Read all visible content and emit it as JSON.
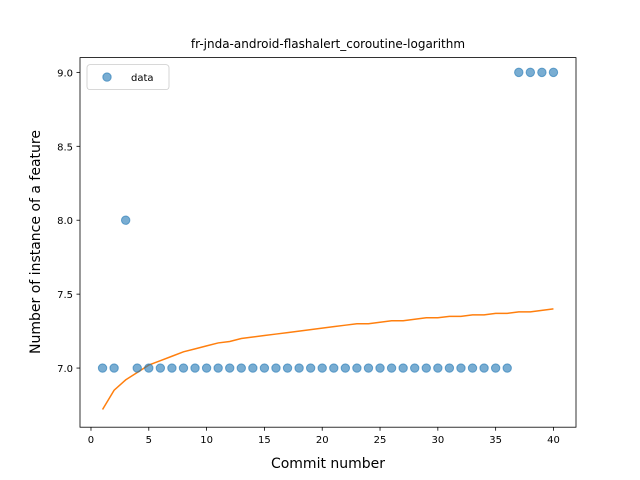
{
  "chart_data": {
    "type": "scatter",
    "title": "fr-jnda-android-flashalert_coroutine-logarithm",
    "xlabel": "Commit number",
    "ylabel": "Number of instance of a feature",
    "xlim": [
      -0.95,
      41.95
    ],
    "ylim": [
      6.6,
      9.1
    ],
    "xticks": [
      0,
      5,
      10,
      15,
      20,
      25,
      30,
      35,
      40
    ],
    "yticks": [
      7.0,
      7.5,
      8.0,
      8.5,
      9.0
    ],
    "xtick_labels": [
      "0",
      "5",
      "10",
      "15",
      "20",
      "25",
      "30",
      "35",
      "40"
    ],
    "ytick_labels": [
      "7.0",
      "7.5",
      "8.0",
      "8.5",
      "9.0"
    ],
    "legend": {
      "placement": "top-left",
      "entries": [
        "data"
      ]
    },
    "grid": false,
    "colors": {
      "data": "#1f77b4",
      "fit": "#ff7f0e"
    },
    "series": [
      {
        "name": "data",
        "kind": "scatter",
        "x": [
          1,
          2,
          3,
          4,
          5,
          6,
          7,
          8,
          9,
          10,
          11,
          12,
          13,
          14,
          15,
          16,
          17,
          18,
          19,
          20,
          21,
          22,
          23,
          24,
          25,
          26,
          27,
          28,
          29,
          30,
          31,
          32,
          33,
          34,
          35,
          36,
          37,
          38,
          39,
          40
        ],
        "y": [
          7,
          7,
          8,
          7,
          7,
          7,
          7,
          7,
          7,
          7,
          7,
          7,
          7,
          7,
          7,
          7,
          7,
          7,
          7,
          7,
          7,
          7,
          7,
          7,
          7,
          7,
          7,
          7,
          7,
          7,
          7,
          7,
          7,
          7,
          7,
          7,
          9,
          9,
          9,
          9
        ]
      },
      {
        "kind": "line",
        "x": [
          1,
          2,
          3,
          4,
          5,
          6,
          7,
          8,
          9,
          10,
          11,
          12,
          13,
          14,
          15,
          16,
          17,
          18,
          19,
          20,
          21,
          22,
          23,
          24,
          25,
          26,
          27,
          28,
          29,
          30,
          31,
          32,
          33,
          34,
          35,
          36,
          37,
          38,
          39,
          40
        ],
        "y": [
          6.72,
          6.85,
          6.92,
          6.97,
          7.02,
          7.05,
          7.08,
          7.11,
          7.13,
          7.15,
          7.17,
          7.18,
          7.2,
          7.21,
          7.22,
          7.23,
          7.24,
          7.25,
          7.26,
          7.27,
          7.28,
          7.29,
          7.3,
          7.3,
          7.31,
          7.32,
          7.32,
          7.33,
          7.34,
          7.34,
          7.35,
          7.35,
          7.36,
          7.36,
          7.37,
          7.37,
          7.38,
          7.38,
          7.39,
          7.4
        ]
      }
    ]
  }
}
